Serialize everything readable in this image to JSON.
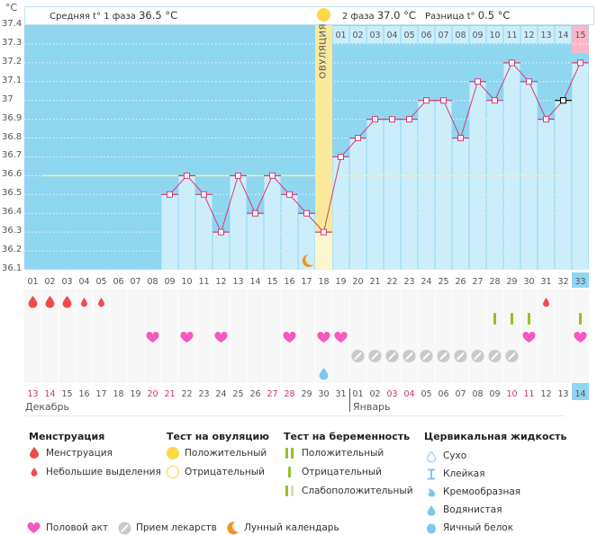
{
  "header": {
    "unit": "°C",
    "phase1_label": "Средняя t° 1 фаза",
    "phase1_value": "36.5 °C",
    "phase2_label": "2 фаза",
    "phase2_value": "37.0 °C",
    "diff_label": "Разница t°",
    "diff_value": "0.5 °C",
    "ovulation_label": "ОВУЛЯЦИЯ"
  },
  "colors": {
    "chart_bg": "#8fd6f1",
    "bar_fill": "#cceefb",
    "line": "#d63a76",
    "ovulation": "#fbe99a",
    "coverline": "#f3f0a8",
    "highlight_day": "#8fd6f1",
    "today_header": "#ffb6c8"
  },
  "chart_data": {
    "type": "line",
    "title": "",
    "xlabel": "",
    "ylabel": "°C",
    "ylim": [
      36.1,
      37.4
    ],
    "yticks": [
      "37.4",
      "37.3",
      "37.2",
      "37.1",
      "37",
      "36.9",
      "36.8",
      "36.7",
      "36.6",
      "36.5",
      "36.4",
      "36.3",
      "36.2",
      "36.1"
    ],
    "cycle_days": [
      "01",
      "02",
      "03",
      "04",
      "05",
      "06",
      "07",
      "08",
      "09",
      "10",
      "11",
      "12",
      "13",
      "14",
      "15",
      "16",
      "17",
      "18",
      "19",
      "20",
      "21",
      "22",
      "23",
      "24",
      "25",
      "26",
      "27",
      "28",
      "29",
      "30",
      "31",
      "32",
      "33"
    ],
    "phase2_days": [
      "01",
      "02",
      "03",
      "04",
      "05",
      "06",
      "07",
      "08",
      "09",
      "10",
      "11",
      "12",
      "13",
      "14",
      "15"
    ],
    "series": [
      {
        "name": "Базальная температура",
        "values": [
          null,
          null,
          null,
          null,
          null,
          null,
          null,
          null,
          36.5,
          36.6,
          36.5,
          36.3,
          36.6,
          36.4,
          36.6,
          36.5,
          36.4,
          36.3,
          36.7,
          36.8,
          36.9,
          36.9,
          36.9,
          37.0,
          37.0,
          36.8,
          37.1,
          37.0,
          37.2,
          37.1,
          36.9,
          37.0,
          37.2
        ]
      }
    ],
    "excluded_point_day": 32,
    "coverline_phase1": 36.6,
    "coverline_phase2": 36.6,
    "ovulation_day": 18,
    "current_day": 33
  },
  "calendar": {
    "dates": [
      "13",
      "14",
      "15",
      "16",
      "17",
      "18",
      "19",
      "20",
      "21",
      "22",
      "23",
      "24",
      "25",
      "26",
      "27",
      "28",
      "29",
      "30",
      "31",
      "01",
      "02",
      "03",
      "04",
      "05",
      "06",
      "07",
      "08",
      "09",
      "10",
      "11",
      "12",
      "13",
      "14"
    ],
    "weekend_flags": [
      1,
      1,
      0,
      0,
      0,
      0,
      0,
      1,
      1,
      0,
      0,
      0,
      0,
      0,
      1,
      1,
      0,
      0,
      0,
      0,
      0,
      1,
      1,
      0,
      0,
      0,
      0,
      0,
      1,
      1,
      0,
      0,
      0
    ],
    "months": [
      {
        "label": "Декабрь"
      },
      {
        "label": "Январь"
      }
    ],
    "rows": {
      "menstruation": [
        2,
        2,
        2,
        1,
        1,
        0,
        0,
        0,
        0,
        0,
        0,
        0,
        0,
        0,
        0,
        0,
        0,
        0,
        0,
        0,
        0,
        0,
        0,
        0,
        0,
        0,
        0,
        0,
        0,
        0,
        1,
        0,
        0
      ],
      "pregnancy_test": [
        0,
        0,
        0,
        0,
        0,
        0,
        0,
        0,
        0,
        0,
        0,
        0,
        0,
        0,
        0,
        0,
        0,
        0,
        0,
        0,
        0,
        0,
        0,
        0,
        0,
        0,
        0,
        1,
        1,
        1,
        0,
        0,
        1
      ],
      "intercourse": [
        0,
        0,
        0,
        0,
        0,
        0,
        0,
        1,
        0,
        1,
        0,
        1,
        0,
        0,
        0,
        1,
        0,
        1,
        1,
        0,
        0,
        0,
        0,
        0,
        0,
        0,
        0,
        0,
        0,
        1,
        0,
        0,
        1
      ],
      "medication": [
        0,
        0,
        0,
        0,
        0,
        0,
        0,
        0,
        0,
        0,
        0,
        0,
        0,
        0,
        0,
        0,
        0,
        0,
        0,
        1,
        1,
        1,
        1,
        1,
        1,
        1,
        1,
        1,
        1,
        0,
        0,
        0,
        0
      ],
      "cervical_fluid": [
        0,
        0,
        0,
        0,
        0,
        0,
        0,
        0,
        0,
        0,
        0,
        0,
        0,
        0,
        0,
        0,
        0,
        1,
        0,
        0,
        0,
        0,
        0,
        0,
        0,
        0,
        0,
        0,
        0,
        0,
        0,
        0,
        0
      ],
      "moon_day": 17
    }
  },
  "legend": {
    "menstruation": {
      "title": "Менструация",
      "items": [
        "Менструация",
        "Небольшие выделения"
      ]
    },
    "ovulation_test": {
      "title": "Тест на овуляцию",
      "items": [
        "Положительный",
        "Отрицательный"
      ]
    },
    "pregnancy_test": {
      "title": "Тест на беременность",
      "items": [
        "Положительный",
        "Отрицательный",
        "Слабоположительный"
      ]
    },
    "cervical_fluid": {
      "title": "Цервикальная жидкость",
      "items": [
        "Сухо",
        "Клейкая",
        "Кремообразная",
        "Водянистая",
        "Яичный белок"
      ]
    },
    "other": {
      "items": [
        "Половой акт",
        "Прием лекарств",
        "Лунный календарь"
      ]
    }
  }
}
